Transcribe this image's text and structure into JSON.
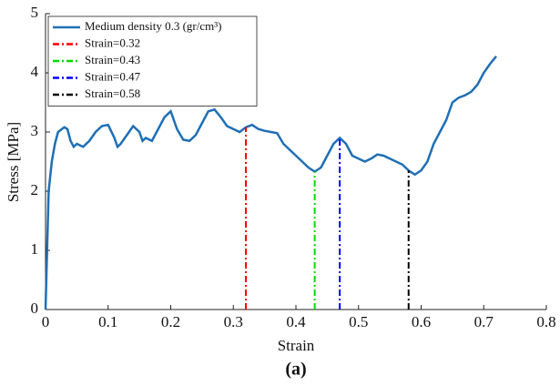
{
  "chart_data": {
    "type": "line",
    "caption": "(a)",
    "x_label": "Strain",
    "y_label": "Stress [MPa]",
    "xlim": [
      0,
      0.8
    ],
    "ylim": [
      0,
      5
    ],
    "xticks": [
      0,
      0.1,
      0.2,
      0.3,
      0.4,
      0.5,
      0.6,
      0.7,
      0.8
    ],
    "yticks": [
      0,
      1,
      2,
      3,
      4,
      5
    ],
    "grid": false,
    "legend": "upper left",
    "series": [
      {
        "name": "Medium density 0.3 (gr/cm³)",
        "color": "#1f6fb5",
        "dash": "solid",
        "x": [
          0,
          0.005,
          0.01,
          0.015,
          0.02,
          0.03,
          0.035,
          0.04,
          0.045,
          0.05,
          0.06,
          0.07,
          0.08,
          0.09,
          0.1,
          0.11,
          0.115,
          0.12,
          0.13,
          0.14,
          0.15,
          0.155,
          0.16,
          0.17,
          0.18,
          0.19,
          0.2,
          0.21,
          0.22,
          0.23,
          0.24,
          0.25,
          0.26,
          0.27,
          0.28,
          0.29,
          0.3,
          0.31,
          0.32,
          0.33,
          0.34,
          0.35,
          0.36,
          0.37,
          0.38,
          0.39,
          0.4,
          0.41,
          0.42,
          0.43,
          0.44,
          0.45,
          0.46,
          0.47,
          0.48,
          0.49,
          0.5,
          0.51,
          0.52,
          0.53,
          0.54,
          0.55,
          0.56,
          0.57,
          0.58,
          0.59,
          0.6,
          0.61,
          0.62,
          0.63,
          0.64,
          0.65,
          0.66,
          0.67,
          0.68,
          0.69,
          0.7,
          0.71,
          0.72
        ],
        "values": [
          0,
          2.0,
          2.5,
          2.8,
          3.0,
          3.08,
          3.05,
          2.85,
          2.75,
          2.8,
          2.75,
          2.85,
          3.0,
          3.1,
          3.12,
          2.9,
          2.75,
          2.8,
          2.95,
          3.1,
          3.0,
          2.85,
          2.9,
          2.85,
          3.05,
          3.25,
          3.35,
          3.05,
          2.87,
          2.85,
          2.95,
          3.15,
          3.35,
          3.38,
          3.25,
          3.1,
          3.05,
          3.0,
          3.08,
          3.12,
          3.05,
          3.02,
          3.0,
          2.98,
          2.8,
          2.7,
          2.6,
          2.5,
          2.4,
          2.33,
          2.4,
          2.6,
          2.8,
          2.9,
          2.8,
          2.6,
          2.55,
          2.5,
          2.55,
          2.62,
          2.6,
          2.55,
          2.5,
          2.45,
          2.35,
          2.28,
          2.35,
          2.5,
          2.8,
          3.0,
          3.2,
          3.5,
          3.58,
          3.62,
          3.68,
          3.8,
          4.0,
          4.15,
          4.28
        ]
      },
      {
        "name": "Strain=0.32",
        "color": "#ff0000",
        "dash": "dashdot",
        "x": [
          0.32,
          0.32
        ],
        "values": [
          0,
          3.08
        ]
      },
      {
        "name": "Strain=0.43",
        "color": "#00dd00",
        "dash": "dashdot",
        "x": [
          0.43,
          0.43
        ],
        "values": [
          0,
          2.33
        ]
      },
      {
        "name": "Strain=0.47",
        "color": "#0000ff",
        "dash": "dashdot",
        "x": [
          0.47,
          0.47
        ],
        "values": [
          0,
          2.9
        ]
      },
      {
        "name": "Strain=0.58",
        "color": "#000000",
        "dash": "dashdot",
        "x": [
          0.58,
          0.58
        ],
        "values": [
          0,
          2.35
        ]
      }
    ]
  }
}
